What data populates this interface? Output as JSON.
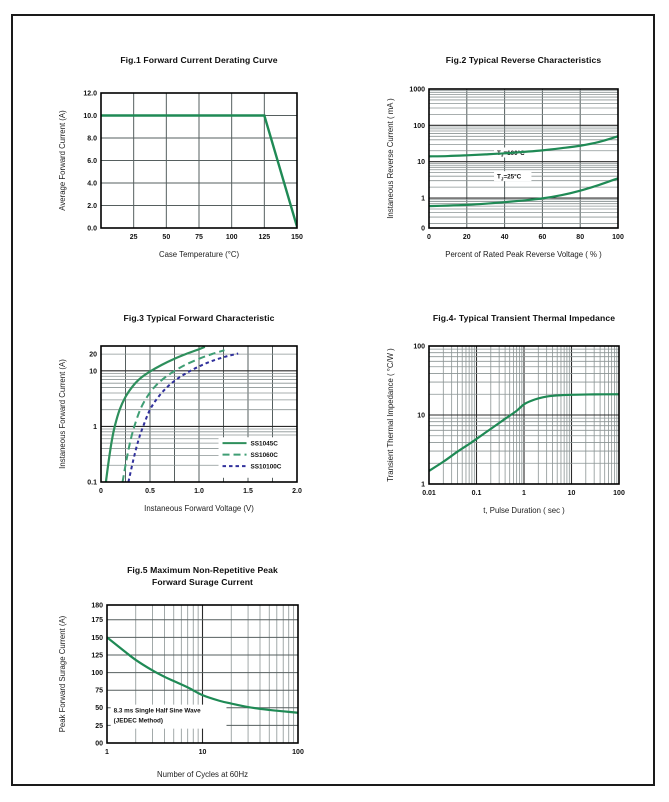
{
  "chart_data": [
    {
      "id": "fig1",
      "type": "line",
      "title_lines": [
        "Fig.1  Forward Current Derating Curve"
      ],
      "xlabel": "Case Temperature (°C)",
      "ylabel": "Average Forward Current (A)",
      "xscale": "linear",
      "yscale": "linear",
      "xlim": [
        0,
        150
      ],
      "ylim": [
        0,
        12
      ],
      "xticks": [
        {
          "v": 25,
          "t": "25"
        },
        {
          "v": 50,
          "t": "50"
        },
        {
          "v": 75,
          "t": "75"
        },
        {
          "v": 100,
          "t": "100"
        },
        {
          "v": 125,
          "t": "125"
        },
        {
          "v": 150,
          "t": "150"
        }
      ],
      "yticks": [
        {
          "v": 12,
          "t": "12.0"
        },
        {
          "v": 10,
          "t": "10.0"
        },
        {
          "v": 8,
          "t": "8.0"
        },
        {
          "v": 6,
          "t": "6.0"
        },
        {
          "v": 4,
          "t": "4.0"
        },
        {
          "v": 2,
          "t": "2.0"
        },
        {
          "v": 0,
          "t": "0.0"
        }
      ],
      "xgrid": [
        25,
        50,
        75,
        100,
        125
      ],
      "ygrid": [
        2,
        4,
        6,
        8,
        10
      ],
      "series": [
        {
          "name": "forward-current-derating",
          "label": "",
          "color": "#1f8a55",
          "dash": null,
          "smooth": false,
          "width": 2.4,
          "points": [
            [
              0,
              10
            ],
            [
              125,
              10
            ],
            [
              150,
              0.12
            ]
          ]
        }
      ]
    },
    {
      "id": "fig2",
      "type": "line",
      "title_lines": [
        "Fig.2  Typical Reverse Characteristics"
      ],
      "xlabel": "Percent of Rated Peak Reverse Voltage ( % )",
      "ylabel": "Instaneous Reverse Current ( mA )",
      "xscale": "linear",
      "yscale": "log",
      "xlim": [
        0,
        100
      ],
      "ylim": [
        0.15,
        1000
      ],
      "xticks": [
        {
          "v": 0,
          "t": "0"
        },
        {
          "v": 20,
          "t": "20"
        },
        {
          "v": 40,
          "t": "40"
        },
        {
          "v": 60,
          "t": "60"
        },
        {
          "v": 80,
          "t": "80"
        },
        {
          "v": 100,
          "t": "100"
        }
      ],
      "yticks": [
        {
          "v": 1000,
          "t": "1000"
        },
        {
          "v": 100,
          "t": "100"
        },
        {
          "v": 10,
          "t": "10"
        },
        {
          "v": 1,
          "t": "1"
        },
        {
          "v": 0.15,
          "t": "0"
        }
      ],
      "xgrid": [
        20,
        40,
        60,
        80
      ],
      "series": [
        {
          "name": "reverse-current-tj100",
          "label": "TJ=100C",
          "color": "#1f8a55",
          "dash": null,
          "smooth": true,
          "width": 2.2,
          "points": [
            [
              0,
              14
            ],
            [
              10,
              14.3
            ],
            [
              20,
              15
            ],
            [
              30,
              15.9
            ],
            [
              40,
              17
            ],
            [
              50,
              18.6
            ],
            [
              60,
              20.5
            ],
            [
              70,
              23.5
            ],
            [
              80,
              27.5
            ],
            [
              90,
              35
            ],
            [
              100,
              50
            ]
          ]
        },
        {
          "name": "reverse-current-tj25",
          "label": "TJ=25C",
          "color": "#1f8a55",
          "dash": null,
          "smooth": true,
          "width": 2.2,
          "points": [
            [
              0,
              0.6
            ],
            [
              10,
              0.62
            ],
            [
              20,
              0.65
            ],
            [
              30,
              0.7
            ],
            [
              40,
              0.77
            ],
            [
              50,
              0.86
            ],
            [
              60,
              0.98
            ],
            [
              70,
              1.2
            ],
            [
              80,
              1.6
            ],
            [
              90,
              2.3
            ],
            [
              100,
              3.5
            ]
          ]
        }
      ],
      "annotations": [
        {
          "fx": 0.36,
          "fy": 0.475,
          "bg": true,
          "parts": [
            {
              "t": "T"
            },
            {
              "t": "J",
              "sub": true
            },
            {
              "t": "=100°C"
            }
          ]
        },
        {
          "fx": 0.36,
          "fy": 0.645,
          "bg": true,
          "parts": [
            {
              "t": "T"
            },
            {
              "t": "J",
              "sub": true
            },
            {
              "t": "=25°C"
            }
          ]
        }
      ]
    },
    {
      "id": "fig3",
      "type": "line",
      "title_lines": [
        "Fig.3  Typical Forward Characteristic"
      ],
      "xlabel": "Instaneous Forward Voltage (V)",
      "ylabel": "Instaneous Forward Current  (A)",
      "xscale": "linear",
      "yscale": "log",
      "xlim": [
        0,
        2
      ],
      "ylim": [
        0.1,
        28
      ],
      "xticks": [
        {
          "v": 0,
          "t": "0"
        },
        {
          "v": 0.5,
          "t": "0.5"
        },
        {
          "v": 1,
          "t": "1.0"
        },
        {
          "v": 1.5,
          "t": "1.5"
        },
        {
          "v": 2,
          "t": "2.0"
        }
      ],
      "yticks": [
        {
          "v": 20,
          "t": "20"
        },
        {
          "v": 10,
          "t": "10"
        },
        {
          "v": 1,
          "t": "1"
        },
        {
          "v": 0.1,
          "t": "0.1"
        }
      ],
      "xgrid": [
        0.25,
        0.5,
        0.75,
        1,
        1.25,
        1.5,
        1.75
      ],
      "series": [
        {
          "name": "ss1045c-curve",
          "label": "SS1045C",
          "color": "#2e8f5c",
          "dash": null,
          "smooth": true,
          "width": 2.2,
          "points": [
            [
              0.05,
              0.1
            ],
            [
              0.08,
              0.25
            ],
            [
              0.11,
              0.55
            ],
            [
              0.14,
              1
            ],
            [
              0.19,
              2
            ],
            [
              0.25,
              3.4
            ],
            [
              0.32,
              5.2
            ],
            [
              0.4,
              7.3
            ],
            [
              0.5,
              9.7
            ],
            [
              0.62,
              12.8
            ],
            [
              0.75,
              16.5
            ],
            [
              0.88,
              20.5
            ],
            [
              1.0,
              24.5
            ],
            [
              1.06,
              27
            ]
          ]
        },
        {
          "name": "ss1060c-curve",
          "label": "SS1060C",
          "color": "#3f9e74",
          "dash": "7,4",
          "smooth": true,
          "width": 2,
          "points": [
            [
              0.22,
              0.1
            ],
            [
              0.26,
              0.25
            ],
            [
              0.3,
              0.55
            ],
            [
              0.34,
              1
            ],
            [
              0.4,
              2
            ],
            [
              0.47,
              3.4
            ],
            [
              0.55,
              5.2
            ],
            [
              0.64,
              7.3
            ],
            [
              0.74,
              9.7
            ],
            [
              0.86,
              12.8
            ],
            [
              1.0,
              16.5
            ],
            [
              1.13,
              20
            ],
            [
              1.26,
              23.5
            ]
          ]
        },
        {
          "name": "ss10100c-curve",
          "label": "SS10100C",
          "color": "#30309c",
          "dash": "3.5,3",
          "smooth": true,
          "width": 2,
          "points": [
            [
              0.28,
              0.1
            ],
            [
              0.33,
              0.25
            ],
            [
              0.38,
              0.55
            ],
            [
              0.43,
              1
            ],
            [
              0.5,
              2
            ],
            [
              0.58,
              3.3
            ],
            [
              0.67,
              5
            ],
            [
              0.77,
              7
            ],
            [
              0.88,
              9.3
            ],
            [
              1.0,
              12
            ],
            [
              1.13,
              15
            ],
            [
              1.27,
              18
            ],
            [
              1.4,
              20.5
            ]
          ]
        }
      ],
      "legend": {
        "fx": 0.62,
        "fy": 0.73
      }
    },
    {
      "id": "fig4",
      "type": "line",
      "title_lines": [
        "Fig.4- Typical Transient Thermal Impedance"
      ],
      "xlabel": "t, Pulse Duration ( sec )",
      "ylabel": "Transient Thermal Impedance ( °C/W )",
      "xscale": "log",
      "yscale": "log",
      "xlim": [
        0.01,
        100
      ],
      "ylim": [
        1,
        100
      ],
      "xticks": [
        {
          "v": 0.01,
          "t": "0.01"
        },
        {
          "v": 0.1,
          "t": "0.1"
        },
        {
          "v": 1,
          "t": "1"
        },
        {
          "v": 10,
          "t": "10"
        },
        {
          "v": 100,
          "t": "100"
        }
      ],
      "yticks": [
        {
          "v": 100,
          "t": "100"
        },
        {
          "v": 10,
          "t": "10"
        },
        {
          "v": 1,
          "t": "1"
        }
      ],
      "series": [
        {
          "name": "transient-thermal-impedance",
          "label": "",
          "color": "#1f8a55",
          "dash": null,
          "smooth": true,
          "width": 2.2,
          "points": [
            [
              0.01,
              1.55
            ],
            [
              0.02,
              2.1
            ],
            [
              0.04,
              2.95
            ],
            [
              0.07,
              3.8
            ],
            [
              0.1,
              4.5
            ],
            [
              0.2,
              6.3
            ],
            [
              0.4,
              8.8
            ],
            [
              0.7,
              11.5
            ],
            [
              1,
              14.3
            ],
            [
              1.5,
              16.3
            ],
            [
              2,
              17.4
            ],
            [
              3,
              18.5
            ],
            [
              5,
              19.2
            ],
            [
              10,
              19.6
            ],
            [
              30,
              19.9
            ],
            [
              100,
              20
            ]
          ]
        }
      ]
    },
    {
      "id": "fig5",
      "type": "line",
      "title_lines": [
        "Fig.5  Maximum Non-Repetitive Peak",
        "Forward Surage Current"
      ],
      "xlabel": "Number of Cycles at 60Hz",
      "ylabel": "Peak Forward Surage Current (A)",
      "xscale": "log",
      "yscale": "linear",
      "xlim": [
        1,
        100
      ],
      "ylim": [
        0,
        180
      ],
      "xticks": [
        {
          "v": 1,
          "t": "1"
        },
        {
          "v": 10,
          "t": "10"
        },
        {
          "v": 100,
          "t": "100"
        }
      ],
      "yticks": [
        {
          "v": 180,
          "t": "180"
        },
        {
          "v": 175,
          "t": "175"
        },
        {
          "v": 150,
          "t": "150"
        },
        {
          "v": 125,
          "t": "125"
        },
        {
          "v": 100,
          "t": "100"
        },
        {
          "v": 75,
          "t": "75"
        },
        {
          "v": 50,
          "t": "50"
        },
        {
          "v": 25,
          "t": "25"
        },
        {
          "v": 0,
          "t": "00"
        }
      ],
      "ygrid": [
        25,
        50,
        75,
        100,
        125,
        150,
        175
      ],
      "series": [
        {
          "name": "peak-surge-current",
          "label": "",
          "color": "#1f8a55",
          "dash": null,
          "smooth": true,
          "width": 2.2,
          "points": [
            [
              1,
              150
            ],
            [
              1.5,
              131
            ],
            [
              2,
              118
            ],
            [
              3,
              103
            ],
            [
              4,
              94
            ],
            [
              5,
              88
            ],
            [
              7,
              79
            ],
            [
              10,
              68
            ],
            [
              15,
              60
            ],
            [
              20,
              56
            ],
            [
              30,
              51
            ],
            [
              50,
              47
            ],
            [
              70,
              45
            ],
            [
              100,
              43
            ]
          ]
        }
      ],
      "annotations": [
        {
          "fx": 0.035,
          "fy": 0.78,
          "bg": true,
          "lines": [
            "8.3 ms Single Half Sine Wave",
            "(JEDEC Method)"
          ]
        }
      ]
    }
  ]
}
